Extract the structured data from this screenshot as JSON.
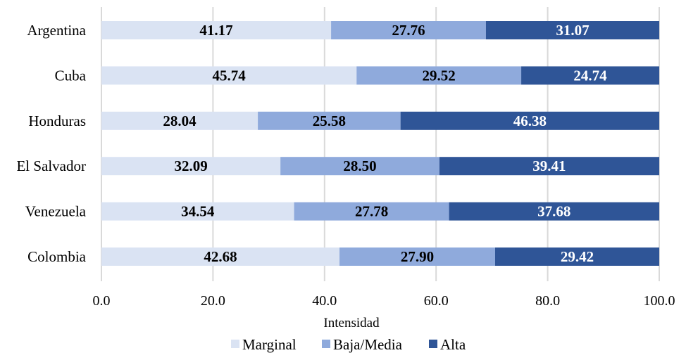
{
  "chart_data": {
    "type": "bar",
    "orientation": "horizontal",
    "stacked": true,
    "categories": [
      "Argentina",
      "Cuba",
      "Honduras",
      "El Salvador",
      "Venezuela",
      "Colombia"
    ],
    "series": [
      {
        "name": "Marginal",
        "color": "#dae3f3",
        "label_color": "#000000",
        "values": [
          41.17,
          45.74,
          28.04,
          32.09,
          34.54,
          42.68
        ]
      },
      {
        "name": "Baja/Media",
        "color": "#8faadc",
        "label_color": "#000000",
        "values": [
          27.76,
          29.52,
          25.58,
          28.5,
          27.78,
          27.9
        ]
      },
      {
        "name": "Alta",
        "color": "#2f5597",
        "label_color": "#ffffff",
        "values": [
          31.07,
          24.74,
          46.38,
          39.41,
          37.68,
          29.42
        ]
      }
    ],
    "xlabel": "Intensidad",
    "ylabel": "",
    "xlim": [
      0,
      100
    ],
    "xticks": [
      "0.0",
      "20.0",
      "40.0",
      "60.0",
      "80.0",
      "100.0"
    ],
    "grid": "vertical",
    "legend": "bottom"
  }
}
